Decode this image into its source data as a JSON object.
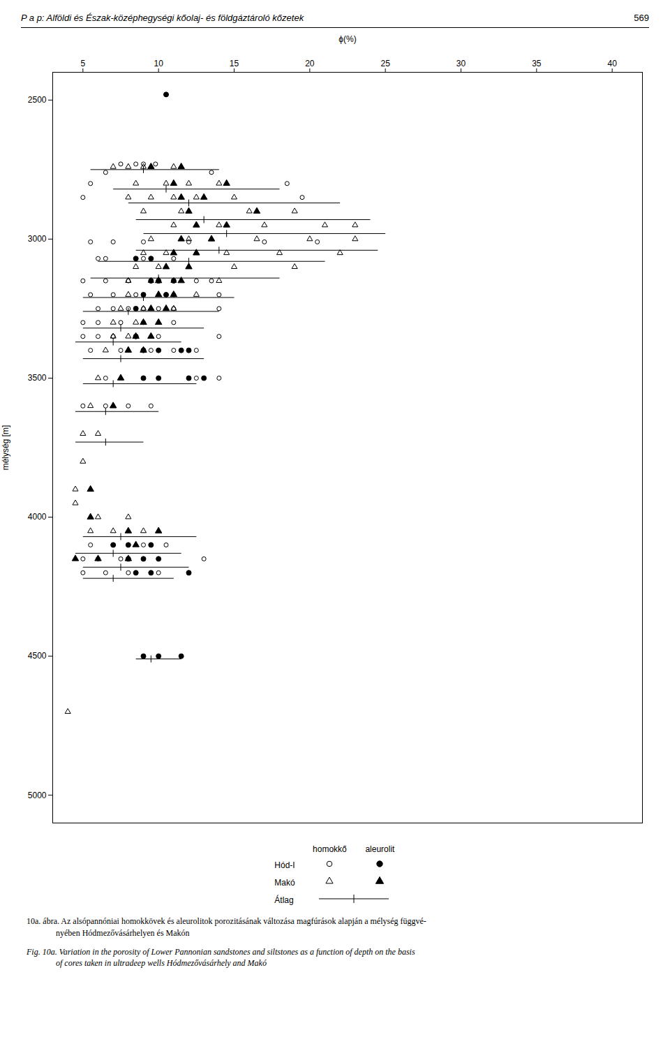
{
  "chart_data": {
    "type": "scatter",
    "title": "P a p:  Alföldi és Észak-középhegységi kőolaj- és földgáztároló kőzetek",
    "page_number": "569",
    "xlabel": "ϕ(%)",
    "ylabel": "mélység [m]",
    "xlim": [
      3,
      42
    ],
    "ylim": [
      5100,
      2400
    ],
    "xticks": [
      5,
      10,
      15,
      20,
      25,
      30,
      35,
      40
    ],
    "yticks": [
      2500,
      3000,
      3500,
      4000,
      4500,
      5000
    ],
    "grid": false,
    "legend": "bottom",
    "caption": [
      "10a. ábra. Az alsópannóniai homokkövek és aleurolitok porozitásának változása magfúrások alapján a mélység függvé-\n              nyében Hódmezővásárhelyen és Makón",
      "Fig. 10a. Variation in the porosity of Lower Pannonian sandstones and siltstones as a function of depth on the basis\n              of cores taken in ultradeep wells Hódmezővásárhely and Makó"
    ],
    "series": [
      {
        "name": "Hód-I",
        "lithology": "homokkő",
        "type": "scatter",
        "marker": "open-circle",
        "color": "black",
        "x": [
          10.5,
          7.5,
          8.5,
          9.0,
          9.8,
          6.5,
          13.5,
          5.5,
          18.5,
          5.0,
          19.5,
          5.5,
          7.0,
          9.0,
          12.0,
          17.0,
          20.5,
          6.0,
          6.5,
          9.0,
          9.5,
          11.0,
          5.0,
          6.5,
          8.0,
          9.5,
          12.5,
          13.5,
          5.5,
          7.0,
          8.5,
          11.0,
          14.0,
          6.0,
          7.0,
          8.0,
          9.0,
          10.0,
          11.0,
          14.0,
          5.0,
          6.0,
          7.5,
          9.0,
          11.0,
          5.0,
          6.0,
          7.0,
          8.5,
          10.0,
          14.0,
          5.5,
          7.5,
          9.5,
          11.0,
          12.5,
          6.5,
          9.0,
          12.5,
          14.0,
          5.0,
          6.5,
          8.0,
          9.5,
          5.5,
          7.0,
          9.0,
          10.5,
          5.0,
          6.0,
          7.5,
          9.0,
          13.0,
          5.0,
          6.5,
          8.0,
          10.0,
          12.0
        ],
        "y": [
          2480,
          2730,
          2730,
          2730,
          2730,
          2760,
          2760,
          2800,
          2800,
          2850,
          2850,
          3010,
          3010,
          3010,
          3010,
          3010,
          3010,
          3070,
          3070,
          3070,
          3070,
          3070,
          3150,
          3150,
          3150,
          3150,
          3150,
          3150,
          3200,
          3200,
          3200,
          3200,
          3200,
          3250,
          3250,
          3250,
          3250,
          3250,
          3250,
          3250,
          3300,
          3300,
          3300,
          3300,
          3300,
          3350,
          3350,
          3350,
          3350,
          3350,
          3350,
          3400,
          3400,
          3400,
          3400,
          3400,
          3500,
          3500,
          3500,
          3500,
          3600,
          3600,
          3600,
          3600,
          4100,
          4100,
          4100,
          4100,
          4150,
          4150,
          4150,
          4150,
          4150,
          4200,
          4200,
          4200,
          4200,
          4200
        ]
      },
      {
        "name": "Hód-I",
        "lithology": "aleurolit",
        "type": "scatter",
        "marker": "circle",
        "color": "black",
        "x": [
          10.5,
          8.5,
          9.5,
          9.5,
          10.0,
          11.0,
          9.0,
          10.5,
          8.5,
          8.5,
          9.0,
          10.0,
          11.5,
          12.0,
          9.0,
          10.0,
          12.0,
          13.0,
          7.0,
          8.0,
          9.5,
          8.0,
          9.0,
          10.0,
          8.5,
          9.5,
          12.0,
          9.0,
          10.0,
          11.5
        ],
        "y": [
          2480,
          3070,
          3070,
          3150,
          3150,
          3150,
          3200,
          3200,
          3250,
          3350,
          3400,
          3400,
          3400,
          3400,
          3500,
          3500,
          3500,
          3500,
          4100,
          4100,
          4100,
          4150,
          4150,
          4150,
          4200,
          4200,
          4200,
          4500,
          4500,
          4500
        ]
      },
      {
        "name": "Makó",
        "lithology": "homokkő",
        "type": "scatter",
        "marker": "open-triangle",
        "color": "black",
        "x": [
          7.0,
          8.0,
          9.0,
          11.0,
          8.5,
          10.5,
          12.0,
          14.0,
          8.0,
          9.5,
          11.0,
          12.5,
          15.0,
          9.0,
          11.5,
          16.0,
          19.0,
          11.0,
          14.0,
          17.0,
          21.0,
          23.0,
          9.5,
          12.0,
          13.5,
          16.5,
          20.0,
          23.0,
          9.0,
          10.5,
          12.5,
          14.5,
          18.0,
          22.0,
          8.5,
          10.0,
          12.0,
          15.0,
          19.0,
          8.0,
          9.5,
          11.0,
          14.0,
          8.0,
          10.0,
          12.5,
          7.5,
          9.0,
          11.0,
          7.0,
          8.5,
          10.0,
          7.0,
          8.0,
          9.5,
          6.5,
          8.0,
          9.0,
          6.0,
          7.5,
          5.5,
          7.0,
          5.0,
          6.0,
          5.0,
          4.5,
          4.5,
          6.0,
          8.0,
          5.5,
          7.0,
          9.0,
          4.0
        ],
        "y": [
          2740,
          2740,
          2740,
          2740,
          2800,
          2800,
          2800,
          2800,
          2850,
          2850,
          2850,
          2850,
          2850,
          2900,
          2900,
          2900,
          2900,
          2950,
          2950,
          2950,
          2950,
          2950,
          3000,
          3000,
          3000,
          3000,
          3000,
          3000,
          3050,
          3050,
          3050,
          3050,
          3050,
          3050,
          3100,
          3100,
          3100,
          3100,
          3100,
          3150,
          3150,
          3150,
          3150,
          3200,
          3200,
          3200,
          3250,
          3250,
          3250,
          3300,
          3300,
          3300,
          3350,
          3350,
          3350,
          3400,
          3400,
          3400,
          3500,
          3500,
          3600,
          3600,
          3700,
          3700,
          3800,
          3900,
          3950,
          4000,
          4000,
          4050,
          4050,
          4050,
          4700
        ]
      },
      {
        "name": "Makó",
        "lithology": "aleurolit",
        "type": "scatter",
        "marker": "triangle",
        "color": "black",
        "x": [
          9.5,
          11.5,
          11.0,
          14.5,
          11.5,
          13.0,
          12.0,
          16.5,
          12.5,
          14.5,
          11.5,
          13.5,
          11.0,
          12.5,
          10.5,
          12.0,
          10.0,
          11.5,
          10.0,
          11.0,
          9.5,
          10.5,
          9.0,
          10.0,
          8.5,
          9.5,
          8.0,
          9.0,
          7.5,
          7.0,
          5.5,
          5.5,
          8.0,
          10.0,
          8.5,
          4.5,
          6.0,
          8.0
        ],
        "y": [
          2740,
          2740,
          2800,
          2800,
          2850,
          2850,
          2900,
          2900,
          2950,
          2950,
          3000,
          3000,
          3050,
          3050,
          3100,
          3100,
          3150,
          3150,
          3200,
          3200,
          3250,
          3250,
          3300,
          3300,
          3350,
          3350,
          3400,
          3400,
          3500,
          3600,
          3900,
          4000,
          4050,
          4050,
          4100,
          4150,
          4150,
          4150
        ]
      },
      {
        "name": "Átlag",
        "type": "range",
        "color": "black",
        "y": [
          2750,
          2820,
          2870,
          2930,
          2980,
          3040,
          3080,
          3140,
          3210,
          3260,
          3320,
          3370,
          3430,
          3520,
          3620,
          3730,
          4070,
          4130,
          4180,
          4220,
          4510
        ],
        "min": [
          5.5,
          7.0,
          8.0,
          8.5,
          9.0,
          8.5,
          6.0,
          5.5,
          5.0,
          5.0,
          5.0,
          4.5,
          5.0,
          5.0,
          4.5,
          4.5,
          5.0,
          4.5,
          5.0,
          5.0,
          8.5
        ],
        "mean": [
          9.0,
          10.5,
          12.0,
          13.0,
          14.5,
          14.0,
          12.0,
          10.0,
          9.0,
          8.0,
          7.5,
          7.0,
          7.5,
          7.0,
          6.5,
          6.5,
          7.5,
          7.0,
          7.5,
          7.0,
          9.5
        ],
        "max": [
          14.0,
          18.0,
          22.0,
          24.0,
          25.0,
          24.5,
          21.0,
          18.0,
          15.0,
          14.0,
          13.0,
          11.5,
          13.0,
          12.5,
          10.0,
          9.0,
          12.5,
          11.5,
          12.0,
          11.0,
          11.5
        ]
      }
    ]
  }
}
